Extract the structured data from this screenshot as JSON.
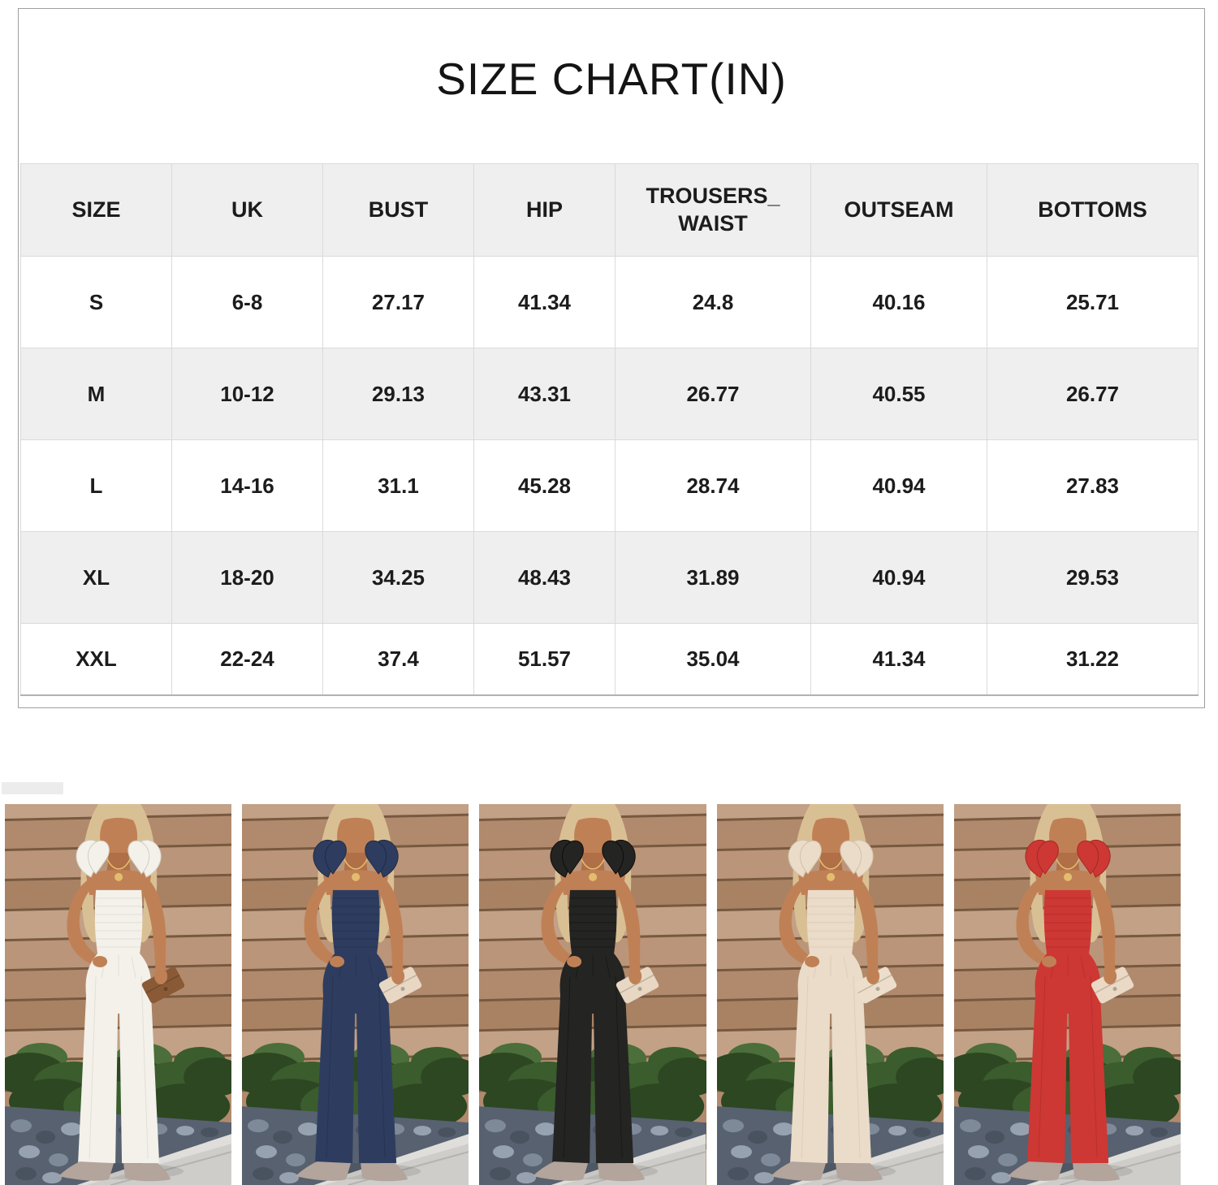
{
  "title": "SIZE CHART(IN)",
  "table": {
    "headers": [
      "SIZE",
      "UK",
      "BUST",
      "HIP",
      "TROUSERS_ WAIST",
      "OUTSEAM",
      "BOTTOMS"
    ],
    "rows": [
      [
        "S",
        "6-8",
        "27.17",
        "41.34",
        "24.8",
        "40.16",
        "25.71"
      ],
      [
        "M",
        "10-12",
        "29.13",
        "43.31",
        "26.77",
        "40.55",
        "26.77"
      ],
      [
        "L",
        "14-16",
        "31.1",
        "45.28",
        "28.74",
        "40.94",
        "27.83"
      ],
      [
        "XL",
        "18-20",
        "34.25",
        "48.43",
        "31.89",
        "40.94",
        "29.53"
      ],
      [
        "XXL",
        "22-24",
        "37.4",
        "51.57",
        "35.04",
        "41.34",
        "31.22"
      ]
    ]
  },
  "photos": [
    {
      "name": "white",
      "label": "white jumpsuit",
      "suit": "#f3f1ea",
      "suit_shade": "#d2cec2",
      "clutch": "#8a5a36"
    },
    {
      "name": "navy",
      "label": "navy jumpsuit",
      "suit": "#2e3d5f",
      "suit_shade": "#1e2b45",
      "clutch": "#e7d7c3"
    },
    {
      "name": "black",
      "label": "black jumpsuit",
      "suit": "#242422",
      "suit_shade": "#0d0d0c",
      "clutch": "#e7d7c3"
    },
    {
      "name": "apricot",
      "label": "apricot jumpsuit",
      "suit": "#eadcc9",
      "suit_shade": "#d2c0a8",
      "clutch": "#ecdecb"
    },
    {
      "name": "red",
      "label": "red jumpsuit",
      "suit": "#cd3834",
      "suit_shade": "#a62723",
      "clutch": "#ead9c5"
    }
  ],
  "palette": {
    "wood1": "#c2a186",
    "wood2": "#b18a6d",
    "wood3": "#bb9579",
    "wood4": "#a98264",
    "seam": "#77593f",
    "bush1": "#2c4722",
    "bush2": "#3b5c2d",
    "bush3": "#4b6e3a",
    "stonebed": "#57616f",
    "stone1": "#7e8a99",
    "stone2": "#49525f",
    "stone3": "#97a2b0",
    "pave": "#cecdc9",
    "curb": "#dfdeda",
    "paveseam": "#b4b3af",
    "skin": "#c08055",
    "skin2": "#b06f46",
    "hair": "#d9c094",
    "gold": "#e3bd6f",
    "shoe": "#b3a49c"
  },
  "colors": {
    "table_header_bg": "#efefef",
    "table_border": "#dadada",
    "panel_border": "#9f9f9f",
    "text": "#1c1c1c",
    "page_bg": "#ffffff"
  }
}
